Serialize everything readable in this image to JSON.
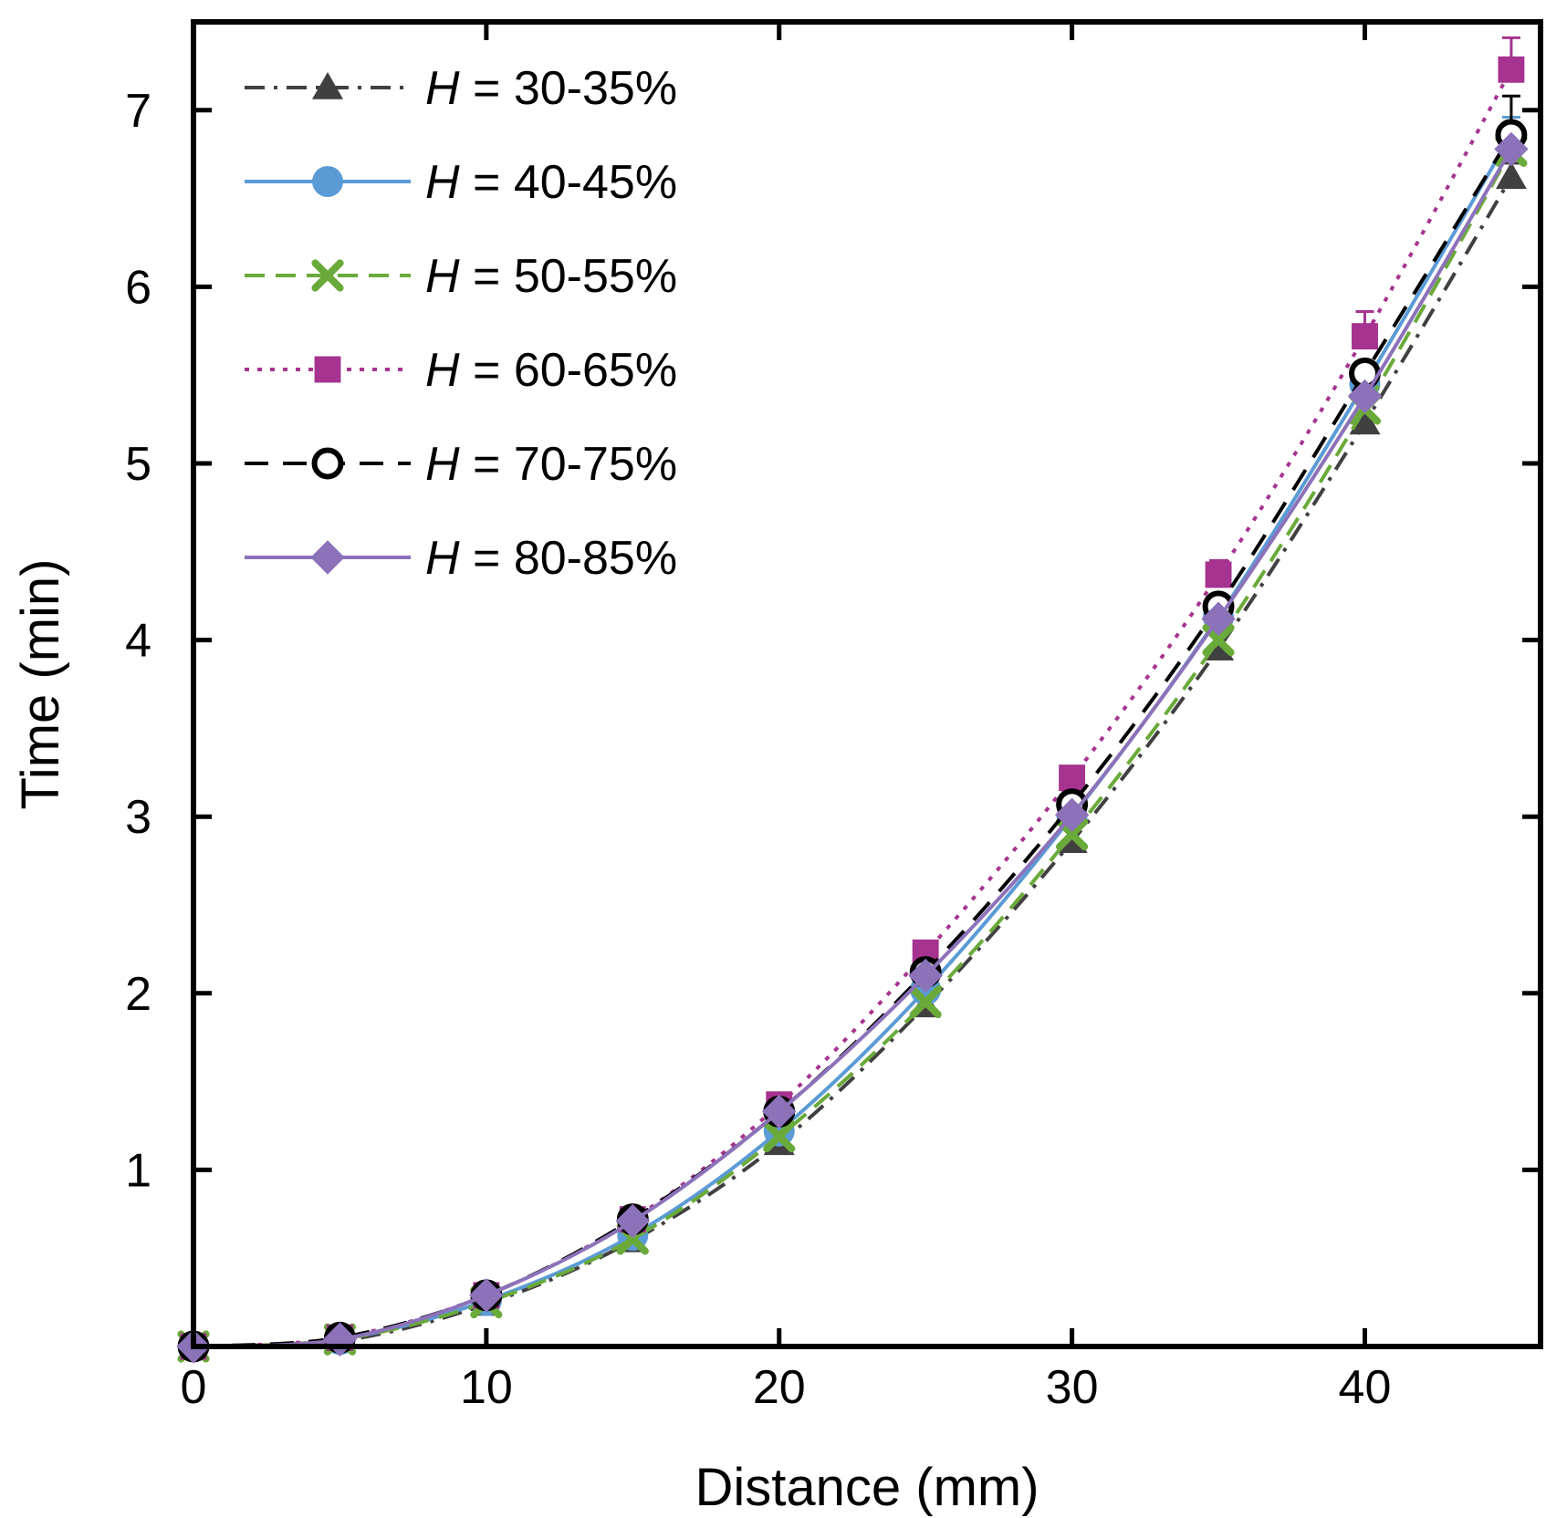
{
  "chart_data": {
    "type": "line",
    "title": "",
    "xlabel": "Distance (mm)",
    "ylabel": "Time (min)",
    "xlim": [
      0,
      46
    ],
    "ylim": [
      0,
      7.5
    ],
    "xticks": [
      0,
      10,
      20,
      30,
      40
    ],
    "yticks": [
      1,
      2,
      3,
      4,
      5,
      6,
      7
    ],
    "grid": false,
    "legend_position": "top-left",
    "x": [
      0,
      5,
      10,
      15,
      20,
      25,
      30,
      35,
      40,
      45
    ],
    "series": [
      {
        "name_prefix": "H",
        "name_suffix": " = 30-35%",
        "color": "#404040",
        "dash": "22,10,4,10",
        "marker": "triangle",
        "values": [
          0,
          0.03,
          0.24,
          0.6,
          1.15,
          1.93,
          2.86,
          3.95,
          5.23,
          6.62
        ],
        "errors": [
          0,
          0,
          0,
          0,
          0,
          0,
          0,
          0,
          0,
          0.08
        ]
      },
      {
        "name_prefix": "H",
        "name_suffix": " = 40-45%",
        "color": "#5b9bd5",
        "dash": "",
        "marker": "circle",
        "values": [
          0,
          0.04,
          0.26,
          0.63,
          1.22,
          2.02,
          3.0,
          4.13,
          5.45,
          6.86
        ],
        "errors": [
          0,
          0,
          0,
          0,
          0,
          0,
          0,
          0,
          0,
          0.1
        ]
      },
      {
        "name_prefix": "H",
        "name_suffix": " = 50-55%",
        "color": "#6aaa3a",
        "dash": "22,12",
        "marker": "x",
        "values": [
          0,
          0.04,
          0.25,
          0.61,
          1.19,
          1.95,
          2.9,
          4.0,
          5.31,
          6.77
        ],
        "errors": [
          0,
          0,
          0,
          0,
          0,
          0,
          0,
          0,
          0,
          0.1
        ]
      },
      {
        "name_prefix": "H",
        "name_suffix": " = 60-65%",
        "color": "#a6338f",
        "dash": "5,9",
        "marker": "square",
        "values": [
          0,
          0.05,
          0.29,
          0.72,
          1.37,
          2.23,
          3.22,
          4.37,
          5.72,
          7.23
        ],
        "errors": [
          0,
          0,
          0,
          0,
          0,
          0,
          0,
          0.08,
          0.14,
          0.18
        ]
      },
      {
        "name_prefix": "H",
        "name_suffix": " = 70-75%",
        "color": "#000000",
        "dash": "26,16",
        "marker": "open-circle",
        "values": [
          0,
          0.05,
          0.29,
          0.72,
          1.33,
          2.12,
          3.07,
          4.19,
          5.51,
          6.86
        ],
        "errors": [
          0,
          0,
          0,
          0,
          0,
          0,
          0,
          0,
          0,
          0.22
        ]
      },
      {
        "name_prefix": "H",
        "name_suffix": " = 80-85%",
        "color": "#8c72b9",
        "dash": "",
        "marker": "diamond",
        "values": [
          0,
          0.04,
          0.29,
          0.71,
          1.33,
          2.1,
          3.01,
          4.12,
          5.38,
          6.78
        ],
        "errors": [
          0,
          0,
          0,
          0,
          0,
          0,
          0,
          0,
          0,
          0
        ]
      }
    ]
  }
}
